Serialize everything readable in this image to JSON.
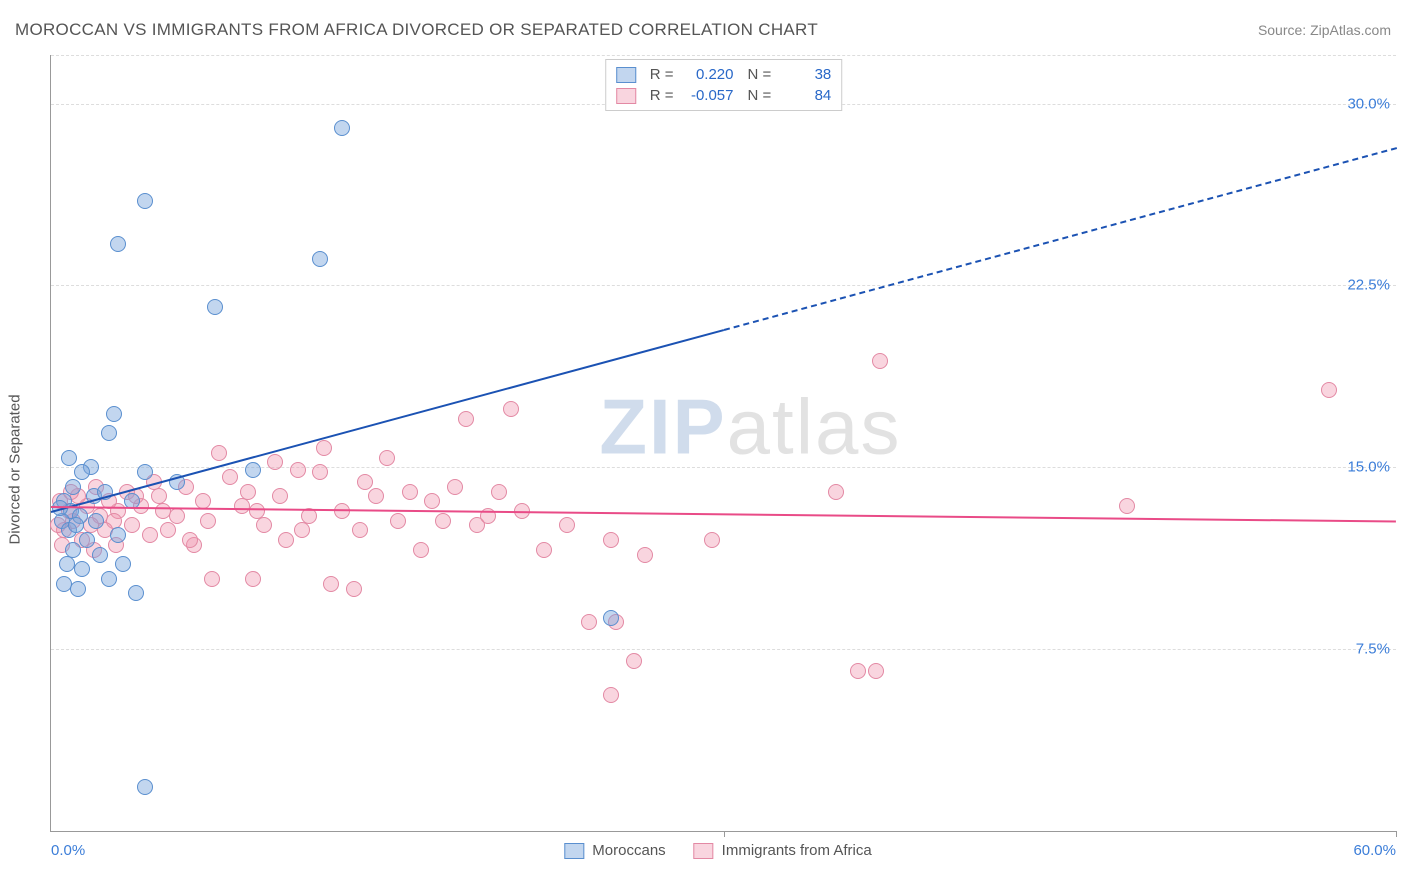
{
  "title": "MOROCCAN VS IMMIGRANTS FROM AFRICA DIVORCED OR SEPARATED CORRELATION CHART",
  "source_label": "Source:",
  "source_name": "ZipAtlas.com",
  "y_axis_label": "Divorced or Separated",
  "watermark": {
    "part1": "ZIP",
    "part2": "atlas"
  },
  "chart": {
    "type": "scatter",
    "xlim": [
      0,
      60
    ],
    "ylim": [
      0,
      32
    ],
    "x_ticks": [
      0,
      30,
      60
    ],
    "x_tick_labels": [
      "0.0%",
      "",
      "60.0%"
    ],
    "x_tick_marks": [
      30,
      60
    ],
    "y_ticks": [
      7.5,
      15.0,
      22.5,
      30.0
    ],
    "y_tick_labels": [
      "7.5%",
      "15.0%",
      "22.5%",
      "30.0%"
    ],
    "background_color": "#ffffff",
    "grid_color": "#dddddd",
    "axis_color": "#999999",
    "tick_label_color": "#3b7dd8"
  },
  "series": [
    {
      "id": "moroccans",
      "label": "Moroccans",
      "R": "0.220",
      "N": "38",
      "fill": "rgba(120, 165, 220, 0.45)",
      "stroke": "#5a8fcf",
      "marker_radius": 8,
      "trend": {
        "color": "#1b52b3",
        "width": 2,
        "solid": {
          "x1": 0,
          "y1": 13.2,
          "x2": 30,
          "y2": 20.7
        },
        "dashed": {
          "x1": 30,
          "y1": 20.7,
          "x2": 60,
          "y2": 28.2
        }
      },
      "points": [
        {
          "x": 13.0,
          "y": 29.0
        },
        {
          "x": 4.2,
          "y": 26.0
        },
        {
          "x": 3.0,
          "y": 24.2
        },
        {
          "x": 12.0,
          "y": 23.6
        },
        {
          "x": 7.3,
          "y": 21.6
        },
        {
          "x": 2.8,
          "y": 17.2
        },
        {
          "x": 2.6,
          "y": 16.4
        },
        {
          "x": 1.8,
          "y": 15.0
        },
        {
          "x": 0.8,
          "y": 15.4
        },
        {
          "x": 1.4,
          "y": 14.8
        },
        {
          "x": 1.0,
          "y": 14.2
        },
        {
          "x": 0.6,
          "y": 13.6
        },
        {
          "x": 0.9,
          "y": 13.2
        },
        {
          "x": 1.3,
          "y": 13.0
        },
        {
          "x": 0.5,
          "y": 12.8
        },
        {
          "x": 4.2,
          "y": 14.8
        },
        {
          "x": 3.6,
          "y": 13.6
        },
        {
          "x": 5.6,
          "y": 14.4
        },
        {
          "x": 9.0,
          "y": 14.9
        },
        {
          "x": 3.0,
          "y": 12.2
        },
        {
          "x": 0.8,
          "y": 12.4
        },
        {
          "x": 1.6,
          "y": 12.0
        },
        {
          "x": 2.2,
          "y": 11.4
        },
        {
          "x": 1.0,
          "y": 11.6
        },
        {
          "x": 1.4,
          "y": 10.8
        },
        {
          "x": 3.8,
          "y": 9.8
        },
        {
          "x": 2.6,
          "y": 10.4
        },
        {
          "x": 0.6,
          "y": 10.2
        },
        {
          "x": 1.2,
          "y": 10.0
        },
        {
          "x": 4.2,
          "y": 1.8
        },
        {
          "x": 25.0,
          "y": 8.8
        },
        {
          "x": 0.4,
          "y": 13.3
        },
        {
          "x": 1.9,
          "y": 13.8
        },
        {
          "x": 2.4,
          "y": 14.0
        },
        {
          "x": 0.7,
          "y": 11.0
        },
        {
          "x": 1.1,
          "y": 12.6
        },
        {
          "x": 3.2,
          "y": 11.0
        },
        {
          "x": 2.0,
          "y": 12.8
        }
      ]
    },
    {
      "id": "africa",
      "label": "Immigrants from Africa",
      "R": "-0.057",
      "N": "84",
      "fill": "rgba(240, 150, 175, 0.40)",
      "stroke": "#e389a4",
      "marker_radius": 8,
      "trend": {
        "color": "#e94b87",
        "width": 2,
        "solid": {
          "x1": 0,
          "y1": 13.4,
          "x2": 60,
          "y2": 12.8
        }
      },
      "points": [
        {
          "x": 37.0,
          "y": 19.4
        },
        {
          "x": 57.0,
          "y": 18.2
        },
        {
          "x": 35.0,
          "y": 14.0
        },
        {
          "x": 48.0,
          "y": 13.4
        },
        {
          "x": 29.5,
          "y": 12.0
        },
        {
          "x": 36.0,
          "y": 6.6
        },
        {
          "x": 36.8,
          "y": 6.6
        },
        {
          "x": 26.0,
          "y": 7.0
        },
        {
          "x": 25.0,
          "y": 5.6
        },
        {
          "x": 24.0,
          "y": 8.6
        },
        {
          "x": 25.2,
          "y": 8.6
        },
        {
          "x": 26.5,
          "y": 11.4
        },
        {
          "x": 25.0,
          "y": 12.0
        },
        {
          "x": 22.0,
          "y": 11.6
        },
        {
          "x": 20.5,
          "y": 17.4
        },
        {
          "x": 19.0,
          "y": 12.6
        },
        {
          "x": 18.5,
          "y": 17.0
        },
        {
          "x": 18.0,
          "y": 14.2
        },
        {
          "x": 17.0,
          "y": 13.6
        },
        {
          "x": 16.5,
          "y": 11.6
        },
        {
          "x": 15.5,
          "y": 12.8
        },
        {
          "x": 15.0,
          "y": 15.4
        },
        {
          "x": 14.0,
          "y": 14.4
        },
        {
          "x": 13.5,
          "y": 10.0
        },
        {
          "x": 13.0,
          "y": 13.2
        },
        {
          "x": 12.5,
          "y": 10.2
        },
        {
          "x": 12.0,
          "y": 14.8
        },
        {
          "x": 11.5,
          "y": 13.0
        },
        {
          "x": 11.0,
          "y": 14.9
        },
        {
          "x": 10.5,
          "y": 12.0
        },
        {
          "x": 10.0,
          "y": 15.2
        },
        {
          "x": 9.5,
          "y": 12.6
        },
        {
          "x": 9.0,
          "y": 10.4
        },
        {
          "x": 8.5,
          "y": 13.4
        },
        {
          "x": 8.0,
          "y": 14.6
        },
        {
          "x": 7.5,
          "y": 15.6
        },
        {
          "x": 7.0,
          "y": 12.8
        },
        {
          "x": 6.8,
          "y": 13.6
        },
        {
          "x": 6.4,
          "y": 11.8
        },
        {
          "x": 6.0,
          "y": 14.2
        },
        {
          "x": 5.6,
          "y": 13.0
        },
        {
          "x": 5.2,
          "y": 12.4
        },
        {
          "x": 4.8,
          "y": 13.8
        },
        {
          "x": 4.4,
          "y": 12.2
        },
        {
          "x": 4.0,
          "y": 13.4
        },
        {
          "x": 3.6,
          "y": 12.6
        },
        {
          "x": 3.4,
          "y": 14.0
        },
        {
          "x": 3.0,
          "y": 13.2
        },
        {
          "x": 2.8,
          "y": 12.8
        },
        {
          "x": 2.6,
          "y": 13.6
        },
        {
          "x": 2.4,
          "y": 12.4
        },
        {
          "x": 2.2,
          "y": 13.0
        },
        {
          "x": 2.0,
          "y": 14.2
        },
        {
          "x": 1.8,
          "y": 12.6
        },
        {
          "x": 1.6,
          "y": 13.4
        },
        {
          "x": 1.4,
          "y": 12.0
        },
        {
          "x": 1.2,
          "y": 13.8
        },
        {
          "x": 1.0,
          "y": 12.8
        },
        {
          "x": 0.8,
          "y": 13.2
        },
        {
          "x": 0.6,
          "y": 12.4
        },
        {
          "x": 0.4,
          "y": 13.6
        },
        {
          "x": 0.3,
          "y": 12.6
        },
        {
          "x": 20.0,
          "y": 14.0
        },
        {
          "x": 21.0,
          "y": 13.2
        },
        {
          "x": 19.5,
          "y": 13.0
        },
        {
          "x": 7.2,
          "y": 10.4
        },
        {
          "x": 12.2,
          "y": 15.8
        },
        {
          "x": 10.2,
          "y": 13.8
        },
        {
          "x": 17.5,
          "y": 12.8
        },
        {
          "x": 13.8,
          "y": 12.4
        },
        {
          "x": 14.5,
          "y": 13.8
        },
        {
          "x": 16.0,
          "y": 14.0
        },
        {
          "x": 23.0,
          "y": 12.6
        },
        {
          "x": 5.0,
          "y": 13.2
        },
        {
          "x": 6.2,
          "y": 12.0
        },
        {
          "x": 8.8,
          "y": 14.0
        },
        {
          "x": 11.2,
          "y": 12.4
        },
        {
          "x": 9.2,
          "y": 13.2
        },
        {
          "x": 4.6,
          "y": 14.4
        },
        {
          "x": 3.8,
          "y": 13.8
        },
        {
          "x": 2.9,
          "y": 11.8
        },
        {
          "x": 1.9,
          "y": 11.6
        },
        {
          "x": 0.9,
          "y": 14.0
        },
        {
          "x": 0.5,
          "y": 11.8
        }
      ]
    }
  ],
  "legend_top": {
    "r_label": "R =",
    "n_label": "N ="
  },
  "legend_bottom_labels": [
    "Moroccans",
    "Immigrants from Africa"
  ]
}
